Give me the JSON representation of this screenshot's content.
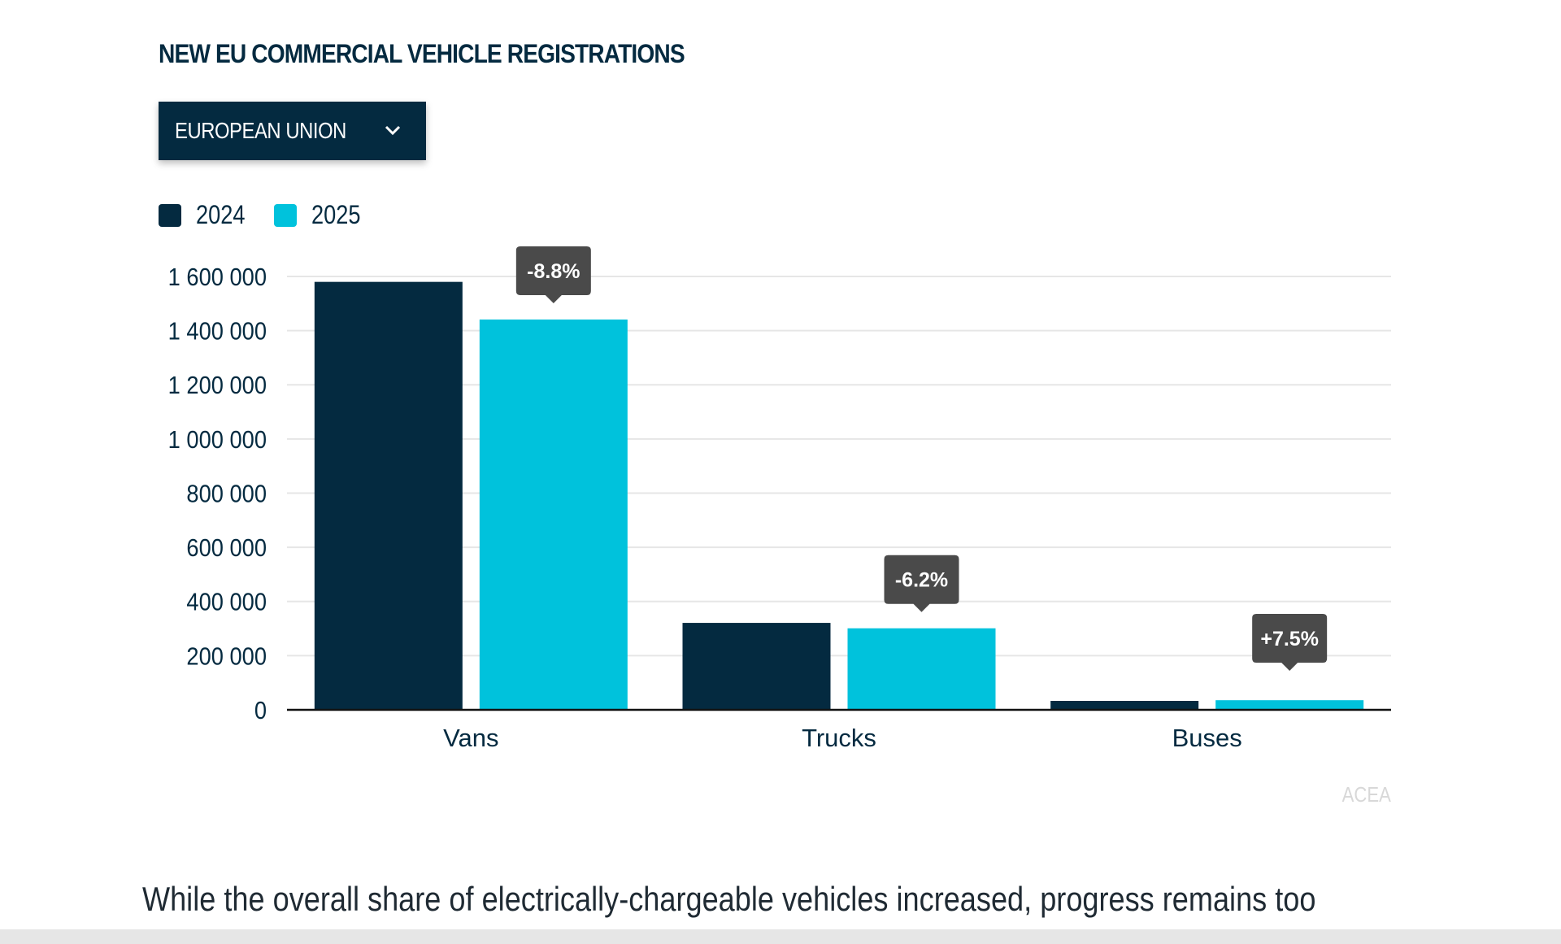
{
  "chart_data": {
    "type": "bar",
    "title": "NEW EU COMMERCIAL VEHICLE REGISTRATIONS",
    "categories": [
      "Vans",
      "Trucks",
      "Buses"
    ],
    "series": [
      {
        "name": "2024",
        "color": "#042a40",
        "values": [
          1580000,
          321000,
          33000
        ]
      },
      {
        "name": "2025",
        "color": "#00c2dc",
        "values": [
          1441000,
          301000,
          35500
        ]
      }
    ],
    "change_labels": [
      "-8.8%",
      "-6.2%",
      "+7.5%"
    ],
    "yticks": [
      0,
      200000,
      400000,
      600000,
      800000,
      1000000,
      1200000,
      1400000,
      1600000
    ],
    "ytick_labels": [
      "0",
      "200 000",
      "400 000",
      "600 000",
      "800 000",
      "1 000 000",
      "1 200 000",
      "1 400 000",
      "1 600 000"
    ],
    "ylim": [
      0,
      1600000
    ],
    "grid": true,
    "legend": "top-left",
    "xlabel": "",
    "ylabel": ""
  },
  "filter": {
    "selected": "EUROPEAN UNION",
    "icon": "chevron-down-icon"
  },
  "credit": "ACEA",
  "body_text": "While the overall share of electrically-chargeable vehicles increased, progress remains too"
}
